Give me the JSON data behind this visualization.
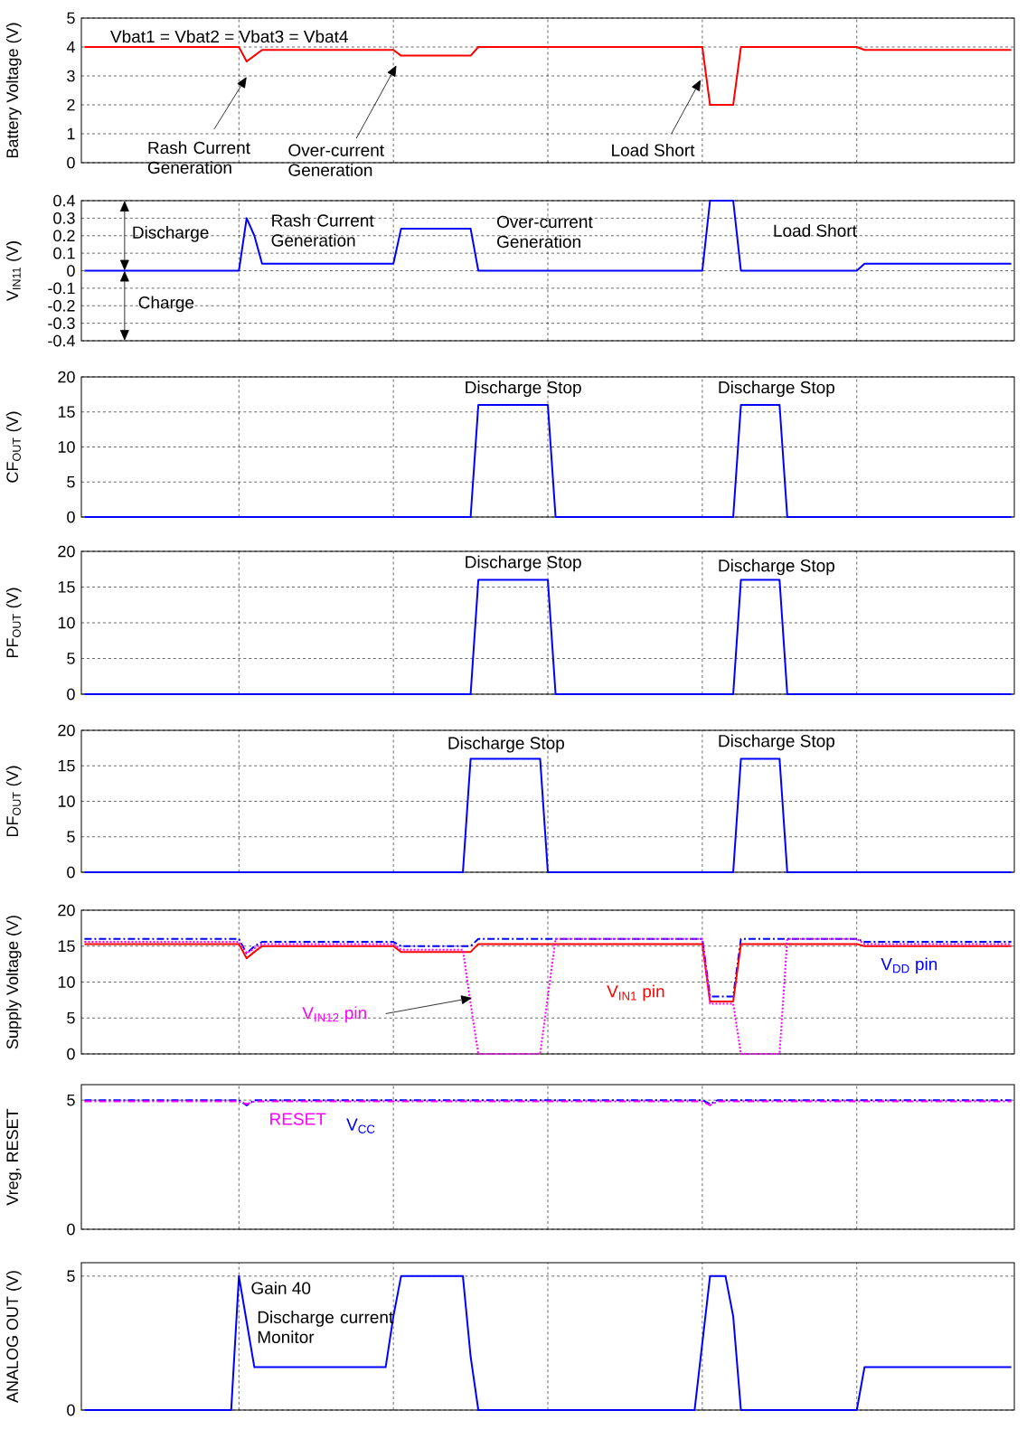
{
  "chart_data": [
    {
      "type": "line",
      "ylabel": "Battery Voltage (V)",
      "categories": [
        null,
        null,
        null,
        null,
        null,
        null,
        null,
        null,
        null,
        null,
        null,
        null,
        null,
        null,
        null,
        null,
        null,
        null,
        null,
        null,
        null,
        null,
        null,
        null,
        null,
        null,
        null,
        null,
        null,
        null,
        null,
        null,
        null,
        null,
        null,
        null,
        null,
        null,
        null,
        null,
        null,
        null,
        null,
        null,
        null,
        null,
        null,
        null,
        null,
        null,
        null,
        null,
        null,
        null,
        null,
        null,
        null,
        null,
        null,
        null,
        null,
        null,
        null,
        null,
        null,
        null,
        null,
        null,
        null,
        null,
        null,
        null,
        null,
        null,
        null,
        null,
        null,
        null,
        null,
        null,
        null,
        null,
        null,
        null,
        null,
        null,
        null,
        null,
        null,
        null,
        null,
        null,
        null,
        null,
        null,
        null,
        null,
        null,
        null,
        null,
        null,
        null,
        null,
        null,
        null,
        null,
        null,
        null,
        null,
        null,
        null,
        null,
        null,
        null,
        null,
        null,
        null,
        null,
        null,
        null,
        null
      ],
      "ylim": [
        0,
        5
      ],
      "yticks": [
        0,
        1,
        2,
        3,
        4,
        5
      ],
      "grid": true,
      "tick_labels": "y",
      "series": [
        {
          "color": "#ff0000",
          "line_style": "solid",
          "values": [
            4,
            4,
            4,
            4,
            4,
            4,
            4,
            4,
            4,
            4,
            4,
            4,
            4,
            4,
            4,
            4,
            4,
            4,
            4,
            4,
            4,
            3.5,
            3.7,
            3.9,
            3.9,
            3.9,
            3.9,
            3.9,
            3.9,
            3.9,
            3.9,
            3.9,
            3.9,
            3.9,
            3.9,
            3.9,
            3.9,
            3.9,
            3.9,
            3.9,
            3.9,
            3.7,
            3.7,
            3.7,
            3.7,
            3.7,
            3.7,
            3.7,
            3.7,
            3.7,
            3.7,
            4,
            4,
            4,
            4,
            4,
            4,
            4,
            4,
            4,
            4,
            4,
            4,
            4,
            4,
            4,
            4,
            4,
            4,
            4,
            4,
            4,
            4,
            4,
            4,
            4,
            4,
            4,
            4,
            4,
            4,
            2,
            2,
            2,
            2,
            4,
            4,
            4,
            4,
            4,
            4,
            4,
            4,
            4,
            4,
            4,
            4,
            4,
            4,
            4,
            4,
            3.9,
            3.9,
            3.9,
            3.9,
            3.9,
            3.9,
            3.9,
            3.9,
            3.9,
            3.9,
            3.9,
            3.9,
            3.9,
            3.9,
            3.9,
            3.9,
            3.9,
            3.9,
            3.9,
            3.9
          ]
        }
      ],
      "annotations": [
        "Vbat1 = Vbat2 = Vbat3 = Vbat4",
        "Rash Current Generation",
        "Over-current Generation",
        "Load Short"
      ]
    },
    {
      "type": "line",
      "ylabel": "V$_{IN11}$ (V)",
      "categories": [
        null,
        null,
        null,
        null,
        null,
        null,
        null,
        null,
        null,
        null,
        null,
        null,
        null,
        null,
        null,
        null,
        null,
        null,
        null,
        null,
        null,
        null,
        null,
        null,
        null,
        null,
        null,
        null,
        null,
        null,
        null,
        null,
        null,
        null,
        null,
        null,
        null,
        null,
        null,
        null,
        null,
        null,
        null,
        null,
        null,
        null,
        null,
        null,
        null,
        null,
        null,
        null,
        null,
        null,
        null,
        null,
        null,
        null,
        null,
        null,
        null,
        null,
        null,
        null,
        null,
        null,
        null,
        null,
        null,
        null,
        null,
        null,
        null,
        null,
        null,
        null,
        null,
        null,
        null,
        null,
        null,
        null,
        null,
        null,
        null,
        null,
        null,
        null,
        null,
        null,
        null,
        null,
        null,
        null,
        null,
        null,
        null,
        null,
        null,
        null,
        null,
        null,
        null,
        null,
        null,
        null,
        null,
        null,
        null,
        null,
        null,
        null,
        null,
        null,
        null,
        null,
        null,
        null,
        null,
        null,
        null
      ],
      "ylim": [
        -0.4,
        0.4
      ],
      "yticks": [
        -0.4,
        -0.3,
        -0.2,
        -0.1,
        0,
        0.1,
        0.2,
        0.3,
        0.4
      ],
      "grid": true,
      "tick_labels": "y",
      "series": [
        {
          "color": "#0000ff",
          "line_style": "solid",
          "values": [
            0,
            0,
            0,
            0,
            0,
            0,
            0,
            0,
            0,
            0,
            0,
            0,
            0,
            0,
            0,
            0,
            0,
            0,
            0,
            0,
            0,
            0.3,
            0.2,
            0.04,
            0.04,
            0.04,
            0.04,
            0.04,
            0.04,
            0.04,
            0.04,
            0.04,
            0.04,
            0.04,
            0.04,
            0.04,
            0.04,
            0.04,
            0.04,
            0.04,
            0.04,
            0.24,
            0.24,
            0.24,
            0.24,
            0.24,
            0.24,
            0.24,
            0.24,
            0.24,
            0.24,
            0,
            0,
            0,
            0,
            0,
            0,
            0,
            0,
            0,
            0,
            0,
            0,
            0,
            0,
            0,
            0,
            0,
            0,
            0,
            0,
            0,
            0,
            0,
            0,
            0,
            0,
            0,
            0,
            0,
            0,
            0.4,
            0.4,
            0.4,
            0.4,
            0,
            0,
            0,
            0,
            0,
            0,
            0,
            0,
            0,
            0,
            0,
            0,
            0,
            0,
            0,
            0,
            0.04,
            0.04,
            0.04,
            0.04,
            0.04,
            0.04,
            0.04,
            0.04,
            0.04,
            0.04,
            0.04,
            0.04,
            0.04,
            0.04,
            0.04,
            0.04,
            0.04,
            0.04,
            0.04,
            0.04
          ]
        }
      ],
      "annotations": [
        "Discharge",
        "Charge",
        "Rash Current Generation",
        "Over-current Generation",
        "Load Short"
      ]
    },
    {
      "type": "line",
      "ylabel": "CF$_{OUT}$ (V)",
      "categories": [
        null,
        null,
        null,
        null,
        null,
        null,
        null,
        null,
        null,
        null,
        null,
        null,
        null,
        null,
        null,
        null,
        null,
        null,
        null,
        null,
        null,
        null,
        null,
        null,
        null,
        null,
        null,
        null,
        null,
        null,
        null,
        null,
        null,
        null,
        null,
        null,
        null,
        null,
        null,
        null,
        null,
        null,
        null,
        null,
        null,
        null,
        null,
        null,
        null,
        null,
        null,
        null,
        null,
        null,
        null,
        null,
        null,
        null,
        null,
        null,
        null,
        null,
        null,
        null,
        null,
        null,
        null,
        null,
        null,
        null,
        null,
        null,
        null,
        null,
        null,
        null,
        null,
        null,
        null,
        null,
        null,
        null,
        null,
        null,
        null,
        null,
        null,
        null,
        null,
        null,
        null,
        null,
        null,
        null,
        null,
        null,
        null,
        null,
        null,
        null,
        null,
        null,
        null,
        null,
        null,
        null,
        null,
        null,
        null,
        null,
        null,
        null,
        null,
        null,
        null,
        null,
        null,
        null,
        null,
        null,
        null
      ],
      "ylim": [
        0,
        20
      ],
      "yticks": [
        0,
        5,
        10,
        15,
        20
      ],
      "grid": true,
      "tick_labels": "y",
      "series": [
        {
          "color": "#0000ff",
          "line_style": "solid",
          "values": [
            0,
            0,
            0,
            0,
            0,
            0,
            0,
            0,
            0,
            0,
            0,
            0,
            0,
            0,
            0,
            0,
            0,
            0,
            0,
            0,
            0,
            0,
            0,
            0,
            0,
            0,
            0,
            0,
            0,
            0,
            0,
            0,
            0,
            0,
            0,
            0,
            0,
            0,
            0,
            0,
            0,
            0,
            0,
            0,
            0,
            0,
            0,
            0,
            0,
            0,
            0,
            16,
            16,
            16,
            16,
            16,
            16,
            16,
            16,
            16,
            16,
            0,
            0,
            0,
            0,
            0,
            0,
            0,
            0,
            0,
            0,
            0,
            0,
            0,
            0,
            0,
            0,
            0,
            0,
            0,
            0,
            0,
            0,
            0,
            0,
            16,
            16,
            16,
            16,
            16,
            16,
            0,
            0,
            0,
            0,
            0,
            0,
            0,
            0,
            0,
            0,
            0,
            0,
            0,
            0,
            0,
            0,
            0,
            0,
            0,
            0,
            0,
            0,
            0,
            0,
            0,
            0,
            0,
            0,
            0,
            0
          ]
        }
      ],
      "annotations": [
        "Discharge Stop",
        "Discharge Stop"
      ]
    },
    {
      "type": "line",
      "ylabel": "PF$_{OUT}$ (V)",
      "categories": [
        null,
        null,
        null,
        null,
        null,
        null,
        null,
        null,
        null,
        null,
        null,
        null,
        null,
        null,
        null,
        null,
        null,
        null,
        null,
        null,
        null,
        null,
        null,
        null,
        null,
        null,
        null,
        null,
        null,
        null,
        null,
        null,
        null,
        null,
        null,
        null,
        null,
        null,
        null,
        null,
        null,
        null,
        null,
        null,
        null,
        null,
        null,
        null,
        null,
        null,
        null,
        null,
        null,
        null,
        null,
        null,
        null,
        null,
        null,
        null,
        null,
        null,
        null,
        null,
        null,
        null,
        null,
        null,
        null,
        null,
        null,
        null,
        null,
        null,
        null,
        null,
        null,
        null,
        null,
        null,
        null,
        null,
        null,
        null,
        null,
        null,
        null,
        null,
        null,
        null,
        null,
        null,
        null,
        null,
        null,
        null,
        null,
        null,
        null,
        null,
        null,
        null,
        null,
        null,
        null,
        null,
        null,
        null,
        null,
        null,
        null,
        null,
        null,
        null,
        null,
        null,
        null,
        null,
        null,
        null,
        null
      ],
      "ylim": [
        0,
        20
      ],
      "yticks": [
        0,
        5,
        10,
        15,
        20
      ],
      "grid": true,
      "tick_labels": "y",
      "series": [
        {
          "color": "#0000ff",
          "line_style": "solid",
          "values": [
            0,
            0,
            0,
            0,
            0,
            0,
            0,
            0,
            0,
            0,
            0,
            0,
            0,
            0,
            0,
            0,
            0,
            0,
            0,
            0,
            0,
            0,
            0,
            0,
            0,
            0,
            0,
            0,
            0,
            0,
            0,
            0,
            0,
            0,
            0,
            0,
            0,
            0,
            0,
            0,
            0,
            0,
            0,
            0,
            0,
            0,
            0,
            0,
            0,
            0,
            0,
            16,
            16,
            16,
            16,
            16,
            16,
            16,
            16,
            16,
            16,
            0,
            0,
            0,
            0,
            0,
            0,
            0,
            0,
            0,
            0,
            0,
            0,
            0,
            0,
            0,
            0,
            0,
            0,
            0,
            0,
            0,
            0,
            0,
            0,
            16,
            16,
            16,
            16,
            16,
            16,
            0,
            0,
            0,
            0,
            0,
            0,
            0,
            0,
            0,
            0,
            0,
            0,
            0,
            0,
            0,
            0,
            0,
            0,
            0,
            0,
            0,
            0,
            0,
            0,
            0,
            0,
            0,
            0,
            0,
            0
          ]
        }
      ],
      "annotations": [
        "Discharge Stop",
        "Discharge Stop"
      ]
    },
    {
      "type": "line",
      "ylabel": "DF$_{OUT}$ (V)",
      "categories": [
        null,
        null,
        null,
        null,
        null,
        null,
        null,
        null,
        null,
        null,
        null,
        null,
        null,
        null,
        null,
        null,
        null,
        null,
        null,
        null,
        null,
        null,
        null,
        null,
        null,
        null,
        null,
        null,
        null,
        null,
        null,
        null,
        null,
        null,
        null,
        null,
        null,
        null,
        null,
        null,
        null,
        null,
        null,
        null,
        null,
        null,
        null,
        null,
        null,
        null,
        null,
        null,
        null,
        null,
        null,
        null,
        null,
        null,
        null,
        null,
        null,
        null,
        null,
        null,
        null,
        null,
        null,
        null,
        null,
        null,
        null,
        null,
        null,
        null,
        null,
        null,
        null,
        null,
        null,
        null,
        null,
        null,
        null,
        null,
        null,
        null,
        null,
        null,
        null,
        null,
        null,
        null,
        null,
        null,
        null,
        null,
        null,
        null,
        null,
        null,
        null,
        null,
        null,
        null,
        null,
        null,
        null,
        null,
        null,
        null,
        null,
        null,
        null,
        null,
        null,
        null,
        null,
        null,
        null,
        null,
        null
      ],
      "ylim": [
        0,
        20
      ],
      "yticks": [
        0,
        5,
        10,
        15,
        20
      ],
      "grid": true,
      "tick_labels": "y",
      "series": [
        {
          "color": "#0000ff",
          "line_style": "solid",
          "values": [
            0,
            0,
            0,
            0,
            0,
            0,
            0,
            0,
            0,
            0,
            0,
            0,
            0,
            0,
            0,
            0,
            0,
            0,
            0,
            0,
            0,
            0,
            0,
            0,
            0,
            0,
            0,
            0,
            0,
            0,
            0,
            0,
            0,
            0,
            0,
            0,
            0,
            0,
            0,
            0,
            0,
            0,
            0,
            0,
            0,
            0,
            0,
            0,
            0,
            0,
            16,
            16,
            16,
            16,
            16,
            16,
            16,
            16,
            16,
            16,
            0,
            0,
            0,
            0,
            0,
            0,
            0,
            0,
            0,
            0,
            0,
            0,
            0,
            0,
            0,
            0,
            0,
            0,
            0,
            0,
            0,
            0,
            0,
            0,
            0,
            16,
            16,
            16,
            16,
            16,
            16,
            0,
            0,
            0,
            0,
            0,
            0,
            0,
            0,
            0,
            0,
            0,
            0,
            0,
            0,
            0,
            0,
            0,
            0,
            0,
            0,
            0,
            0,
            0,
            0,
            0,
            0,
            0,
            0,
            0,
            0
          ]
        }
      ],
      "annotations": [
        "Discharge Stop",
        "Discharge Stop"
      ]
    },
    {
      "type": "line",
      "ylabel": "Supply Voltage (V)",
      "categories": [
        null,
        null,
        null,
        null,
        null,
        null,
        null,
        null,
        null,
        null,
        null,
        null,
        null,
        null,
        null,
        null,
        null,
        null,
        null,
        null,
        null,
        null,
        null,
        null,
        null,
        null,
        null,
        null,
        null,
        null,
        null,
        null,
        null,
        null,
        null,
        null,
        null,
        null,
        null,
        null,
        null,
        null,
        null,
        null,
        null,
        null,
        null,
        null,
        null,
        null,
        null,
        null,
        null,
        null,
        null,
        null,
        null,
        null,
        null,
        null,
        null,
        null,
        null,
        null,
        null,
        null,
        null,
        null,
        null,
        null,
        null,
        null,
        null,
        null,
        null,
        null,
        null,
        null,
        null,
        null,
        null,
        null,
        null,
        null,
        null,
        null,
        null,
        null,
        null,
        null,
        null,
        null,
        null,
        null,
        null,
        null,
        null,
        null,
        null,
        null,
        null,
        null,
        null,
        null,
        null,
        null,
        null,
        null,
        null,
        null,
        null,
        null,
        null,
        null,
        null,
        null,
        null,
        null,
        null,
        null,
        null
      ],
      "ylim": [
        0,
        20
      ],
      "yticks": [
        0,
        5,
        10,
        15,
        20
      ],
      "grid": true,
      "tick_labels": "y",
      "series": [
        {
          "name": "V$_{DD}$ pin",
          "color": "#0000ff",
          "line_style": "dashed",
          "values": [
            16,
            16,
            16,
            16,
            16,
            16,
            16,
            16,
            16,
            16,
            16,
            16,
            16,
            16,
            16,
            16,
            16,
            16,
            16,
            16,
            16,
            14,
            15,
            15.6,
            15.6,
            15.6,
            15.6,
            15.6,
            15.6,
            15.6,
            15.6,
            15.6,
            15.6,
            15.6,
            15.6,
            15.6,
            15.6,
            15.6,
            15.6,
            15.6,
            15.6,
            15,
            15,
            15,
            15,
            15,
            15,
            15,
            15,
            15,
            15,
            16,
            16,
            16,
            16,
            16,
            16,
            16,
            16,
            16,
            16,
            16,
            16,
            16,
            16,
            16,
            16,
            16,
            16,
            16,
            16,
            16,
            16,
            16,
            16,
            16,
            16,
            16,
            16,
            16,
            16,
            8,
            8,
            8,
            8,
            16,
            16,
            16,
            16,
            16,
            16,
            16,
            16,
            16,
            16,
            16,
            16,
            16,
            16,
            16,
            16,
            15.6,
            15.6,
            15.6,
            15.6,
            15.6,
            15.6,
            15.6,
            15.6,
            15.6,
            15.6,
            15.6,
            15.6,
            15.6,
            15.6,
            15.6,
            15.6,
            15.6,
            15.6,
            15.6,
            15.6
          ]
        },
        {
          "name": "V$_{IN1}$ pin",
          "color": "#ff0000",
          "line_style": "solid",
          "values": [
            15.3,
            15.3,
            15.3,
            15.3,
            15.3,
            15.3,
            15.3,
            15.3,
            15.3,
            15.3,
            15.3,
            15.3,
            15.3,
            15.3,
            15.3,
            15.3,
            15.3,
            15.3,
            15.3,
            15.3,
            15.3,
            13.3,
            14.2,
            15,
            15,
            15,
            15,
            15,
            15,
            15,
            15,
            15,
            15,
            15,
            15,
            15,
            15,
            15,
            15,
            15,
            15,
            14.2,
            14.2,
            14.2,
            14.2,
            14.2,
            14.2,
            14.2,
            14.2,
            14.2,
            14.2,
            15.3,
            15.3,
            15.3,
            15.3,
            15.3,
            15.3,
            15.3,
            15.3,
            15.3,
            15.3,
            15.3,
            15.3,
            15.3,
            15.3,
            15.3,
            15.3,
            15.3,
            15.3,
            15.3,
            15.3,
            15.3,
            15.3,
            15.3,
            15.3,
            15.3,
            15.3,
            15.3,
            15.3,
            15.3,
            15.3,
            7.3,
            7.3,
            7.3,
            7.3,
            15.3,
            15.3,
            15.3,
            15.3,
            15.3,
            15.3,
            15.3,
            15.3,
            15.3,
            15.3,
            15.3,
            15.3,
            15.3,
            15.3,
            15.3,
            15.3,
            15,
            15,
            15,
            15,
            15,
            15,
            15,
            15,
            15,
            15,
            15,
            15,
            15,
            15,
            15,
            15,
            15,
            15,
            15,
            15
          ]
        },
        {
          "name": "V$_{IN12}$ pin",
          "color": "#ff00ff",
          "line_style": "dotted",
          "values": [
            15.6,
            15.6,
            15.6,
            15.6,
            15.6,
            15.6,
            15.6,
            15.6,
            15.6,
            15.6,
            15.6,
            15.6,
            15.6,
            15.6,
            15.6,
            15.6,
            15.6,
            15.6,
            15.6,
            15.6,
            15.6,
            14,
            14.7,
            15.3,
            15.3,
            15.3,
            15.3,
            15.3,
            15.3,
            15.3,
            15.3,
            15.3,
            15.3,
            15.3,
            15.3,
            15.3,
            15.3,
            15.3,
            15.3,
            15.3,
            15.3,
            14.5,
            14.5,
            14.5,
            14.5,
            14.5,
            14.5,
            14.5,
            14.5,
            14.5,
            7,
            0,
            0,
            0,
            0,
            0,
            0,
            0,
            0,
            0,
            8,
            16,
            16,
            16,
            16,
            16,
            16,
            16,
            16,
            16,
            16,
            16,
            16,
            16,
            16,
            16,
            16,
            16,
            16,
            16,
            16,
            7,
            7,
            7,
            7,
            0,
            0,
            0,
            0,
            0,
            0,
            16,
            16,
            16,
            16,
            16,
            16,
            16,
            16,
            16,
            16,
            15.3,
            15.3,
            15.3,
            15.3,
            15.3,
            15.3,
            15.3,
            15.3,
            15.3,
            15.3,
            15.3,
            15.3,
            15.3,
            15.3,
            15.3,
            15.3,
            15.3,
            15.3,
            15.3,
            15.3
          ]
        }
      ]
    },
    {
      "type": "line",
      "ylabel": "Vreg, RESET",
      "categories": [
        null,
        null,
        null,
        null,
        null,
        null,
        null,
        null,
        null,
        null,
        null,
        null,
        null,
        null,
        null,
        null,
        null,
        null,
        null,
        null,
        null,
        null,
        null,
        null,
        null,
        null,
        null,
        null,
        null,
        null,
        null,
        null,
        null,
        null,
        null,
        null,
        null,
        null,
        null,
        null,
        null,
        null,
        null,
        null,
        null,
        null,
        null,
        null,
        null,
        null,
        null,
        null,
        null,
        null,
        null,
        null,
        null,
        null,
        null,
        null,
        null,
        null,
        null,
        null,
        null,
        null,
        null,
        null,
        null,
        null,
        null,
        null,
        null,
        null,
        null,
        null,
        null,
        null,
        null,
        null,
        null,
        null,
        null,
        null,
        null,
        null,
        null,
        null,
        null,
        null,
        null,
        null,
        null,
        null,
        null,
        null,
        null,
        null,
        null,
        null,
        null,
        null,
        null,
        null,
        null,
        null,
        null,
        null,
        null,
        null,
        null,
        null,
        null,
        null,
        null,
        null,
        null,
        null,
        null,
        null,
        null
      ],
      "ylim": [
        0,
        5.6
      ],
      "yticks": [
        0,
        5
      ],
      "grid": true,
      "tick_labels": "y",
      "series": [
        {
          "name": "V$_{CC}$",
          "color": "#0000ff",
          "line_style": "dashed",
          "values": [
            5,
            5,
            5,
            5,
            5,
            5,
            5,
            5,
            5,
            5,
            5,
            5,
            5,
            5,
            5,
            5,
            5,
            5,
            5,
            5,
            5,
            4.8,
            5,
            5,
            5,
            5,
            5,
            5,
            5,
            5,
            5,
            5,
            5,
            5,
            5,
            5,
            5,
            5,
            5,
            5,
            5,
            5,
            5,
            5,
            5,
            5,
            5,
            5,
            5,
            5,
            5,
            5,
            5,
            5,
            5,
            5,
            5,
            5,
            5,
            5,
            5,
            5,
            5,
            5,
            5,
            5,
            5,
            5,
            5,
            5,
            5,
            5,
            5,
            5,
            5,
            5,
            5,
            5,
            5,
            5,
            5,
            4.85,
            5,
            5,
            5,
            5,
            5,
            5,
            5,
            5,
            5,
            5,
            5,
            5,
            5,
            5,
            5,
            5,
            5,
            5,
            5,
            5,
            5,
            5,
            5,
            5,
            5,
            5,
            5,
            5,
            5,
            5,
            5,
            5,
            5,
            5,
            5,
            5,
            5,
            5,
            5
          ]
        },
        {
          "name": "RESET",
          "color": "#ff00ff",
          "line_style": "dashed",
          "values": [
            4.95,
            4.95,
            4.95,
            4.95,
            4.95,
            4.95,
            4.95,
            4.95,
            4.95,
            4.95,
            4.95,
            4.95,
            4.95,
            4.95,
            4.95,
            4.95,
            4.95,
            4.95,
            4.95,
            4.95,
            4.95,
            4.85,
            4.95,
            4.95,
            4.95,
            4.95,
            4.95,
            4.95,
            4.95,
            4.95,
            4.95,
            4.95,
            4.95,
            4.95,
            4.95,
            4.95,
            4.95,
            4.95,
            4.95,
            4.95,
            4.95,
            4.95,
            4.95,
            4.95,
            4.95,
            4.95,
            4.95,
            4.95,
            4.95,
            4.95,
            4.95,
            4.95,
            4.95,
            4.95,
            4.95,
            4.95,
            4.95,
            4.95,
            4.95,
            4.95,
            4.95,
            4.95,
            4.95,
            4.95,
            4.95,
            4.95,
            4.95,
            4.95,
            4.95,
            4.95,
            4.95,
            4.95,
            4.95,
            4.95,
            4.95,
            4.95,
            4.95,
            4.95,
            4.95,
            4.95,
            4.95,
            4.8,
            4.95,
            4.95,
            4.95,
            4.95,
            4.95,
            4.95,
            4.95,
            4.95,
            4.95,
            4.95,
            4.95,
            4.95,
            4.95,
            4.95,
            4.95,
            4.95,
            4.95,
            4.95,
            4.95,
            4.95,
            4.95,
            4.95,
            4.95,
            4.95,
            4.95,
            4.95,
            4.95,
            4.95,
            4.95,
            4.95,
            4.95,
            4.95,
            4.95,
            4.95,
            4.95,
            4.95,
            4.95,
            4.95,
            4.95
          ]
        }
      ]
    },
    {
      "type": "line",
      "ylabel": "ANALOG OUT (V)",
      "categories": [
        null,
        null,
        null,
        null,
        null,
        null,
        null,
        null,
        null,
        null,
        null,
        null,
        null,
        null,
        null,
        null,
        null,
        null,
        null,
        null,
        null,
        null,
        null,
        null,
        null,
        null,
        null,
        null,
        null,
        null,
        null,
        null,
        null,
        null,
        null,
        null,
        null,
        null,
        null,
        null,
        null,
        null,
        null,
        null,
        null,
        null,
        null,
        null,
        null,
        null,
        null,
        null,
        null,
        null,
        null,
        null,
        null,
        null,
        null,
        null,
        null,
        null,
        null,
        null,
        null,
        null,
        null,
        null,
        null,
        null,
        null,
        null,
        null,
        null,
        null,
        null,
        null,
        null,
        null,
        null,
        null,
        null,
        null,
        null,
        null,
        null,
        null,
        null,
        null,
        null,
        null,
        null,
        null,
        null,
        null,
        null,
        null,
        null,
        null,
        null,
        null,
        null,
        null,
        null,
        null,
        null,
        null,
        null,
        null,
        null,
        null,
        null,
        null,
        null,
        null,
        null,
        null,
        null,
        null,
        null,
        null
      ],
      "ylim": [
        0,
        5.5
      ],
      "yticks": [
        0,
        5
      ],
      "grid": true,
      "tick_labels": "y",
      "series": [
        {
          "color": "#0000ff",
          "line_style": "solid",
          "values": [
            0,
            0,
            0,
            0,
            0,
            0,
            0,
            0,
            0,
            0,
            0,
            0,
            0,
            0,
            0,
            0,
            0,
            0,
            0,
            0,
            5,
            3.3,
            1.6,
            1.6,
            1.6,
            1.6,
            1.6,
            1.6,
            1.6,
            1.6,
            1.6,
            1.6,
            1.6,
            1.6,
            1.6,
            1.6,
            1.6,
            1.6,
            1.6,
            1.6,
            3.5,
            5,
            5,
            5,
            5,
            5,
            5,
            5,
            5,
            5,
            2,
            0,
            0,
            0,
            0,
            0,
            0,
            0,
            0,
            0,
            0,
            0,
            0,
            0,
            0,
            0,
            0,
            0,
            0,
            0,
            0,
            0,
            0,
            0,
            0,
            0,
            0,
            0,
            0,
            0,
            2.5,
            5,
            5,
            5,
            3.5,
            0,
            0,
            0,
            0,
            0,
            0,
            0,
            0,
            0,
            0,
            0,
            0,
            0,
            0,
            0,
            0,
            1.6,
            1.6,
            1.6,
            1.6,
            1.6,
            1.6,
            1.6,
            1.6,
            1.6,
            1.6,
            1.6,
            1.6,
            1.6,
            1.6,
            1.6,
            1.6,
            1.6,
            1.6,
            1.6,
            1.6
          ]
        }
      ],
      "annotations": [
        "Gain 40",
        "Discharge current Monitor"
      ]
    }
  ]
}
